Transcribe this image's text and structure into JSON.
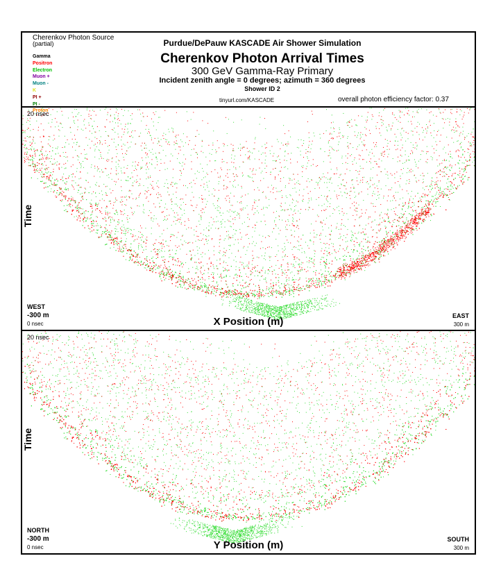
{
  "header": {
    "source_title": "Cherenkov Photon Source",
    "source_sub": "(partial)",
    "legend": [
      {
        "label": "Gamma",
        "color": "#000000"
      },
      {
        "label": "Positron",
        "color": "#ff0000"
      },
      {
        "label": "Electron",
        "color": "#00c000"
      },
      {
        "label": "Muon +",
        "color": "#8000a0"
      },
      {
        "label": "Muon -",
        "color": "#008080"
      },
      {
        "label": "K",
        "color": "#e0e020"
      },
      {
        "label": "PI +",
        "color": "#900000"
      },
      {
        "label": "PI -",
        "color": "#008000"
      },
      {
        "label": "Proton",
        "color": "#ff8000"
      }
    ],
    "suite_title": "Purdue/DePauw KASCADE Air Shower Simulation",
    "main_title": "Cherenkov Photon Arrival Times",
    "subtitle": "300 GeV Gamma-Ray Primary",
    "incident": "Incident zenith angle =  0 degrees;  azimuth =  360 degrees",
    "shower_id": "Shower ID 2",
    "url": "tinyurl.com/KASCADE",
    "efficiency": "overall photon efficiency factor: 0.37"
  },
  "chart_data": [
    {
      "type": "scatter",
      "xlabel": "X Position (m)",
      "ylabel": "Time",
      "xlim": [
        -300,
        300
      ],
      "ylim_ns": [
        0,
        20
      ],
      "x_min_label": "-300 m",
      "x_max_label": "300 m",
      "t_min_label": "0 nsec",
      "t_max_label": "20 nsec",
      "left_dir": "WEST",
      "right_dir": "EAST",
      "series": [
        {
          "name": "Electron",
          "color": "#33dd33"
        },
        {
          "name": "Positron",
          "color": "#ff0000"
        }
      ]
    },
    {
      "type": "scatter",
      "xlabel": "Y Position (m)",
      "ylabel": "Time",
      "xlim": [
        -300,
        300
      ],
      "ylim_ns": [
        0,
        20
      ],
      "x_min_label": "-300 m",
      "x_max_label": "300 m",
      "t_min_label": "0 nsec",
      "t_max_label": "20 nsec",
      "left_dir": "NORTH",
      "right_dir": "SOUTH",
      "series": [
        {
          "name": "Electron",
          "color": "#33dd33"
        },
        {
          "name": "Positron",
          "color": "#ff0000"
        }
      ]
    }
  ]
}
